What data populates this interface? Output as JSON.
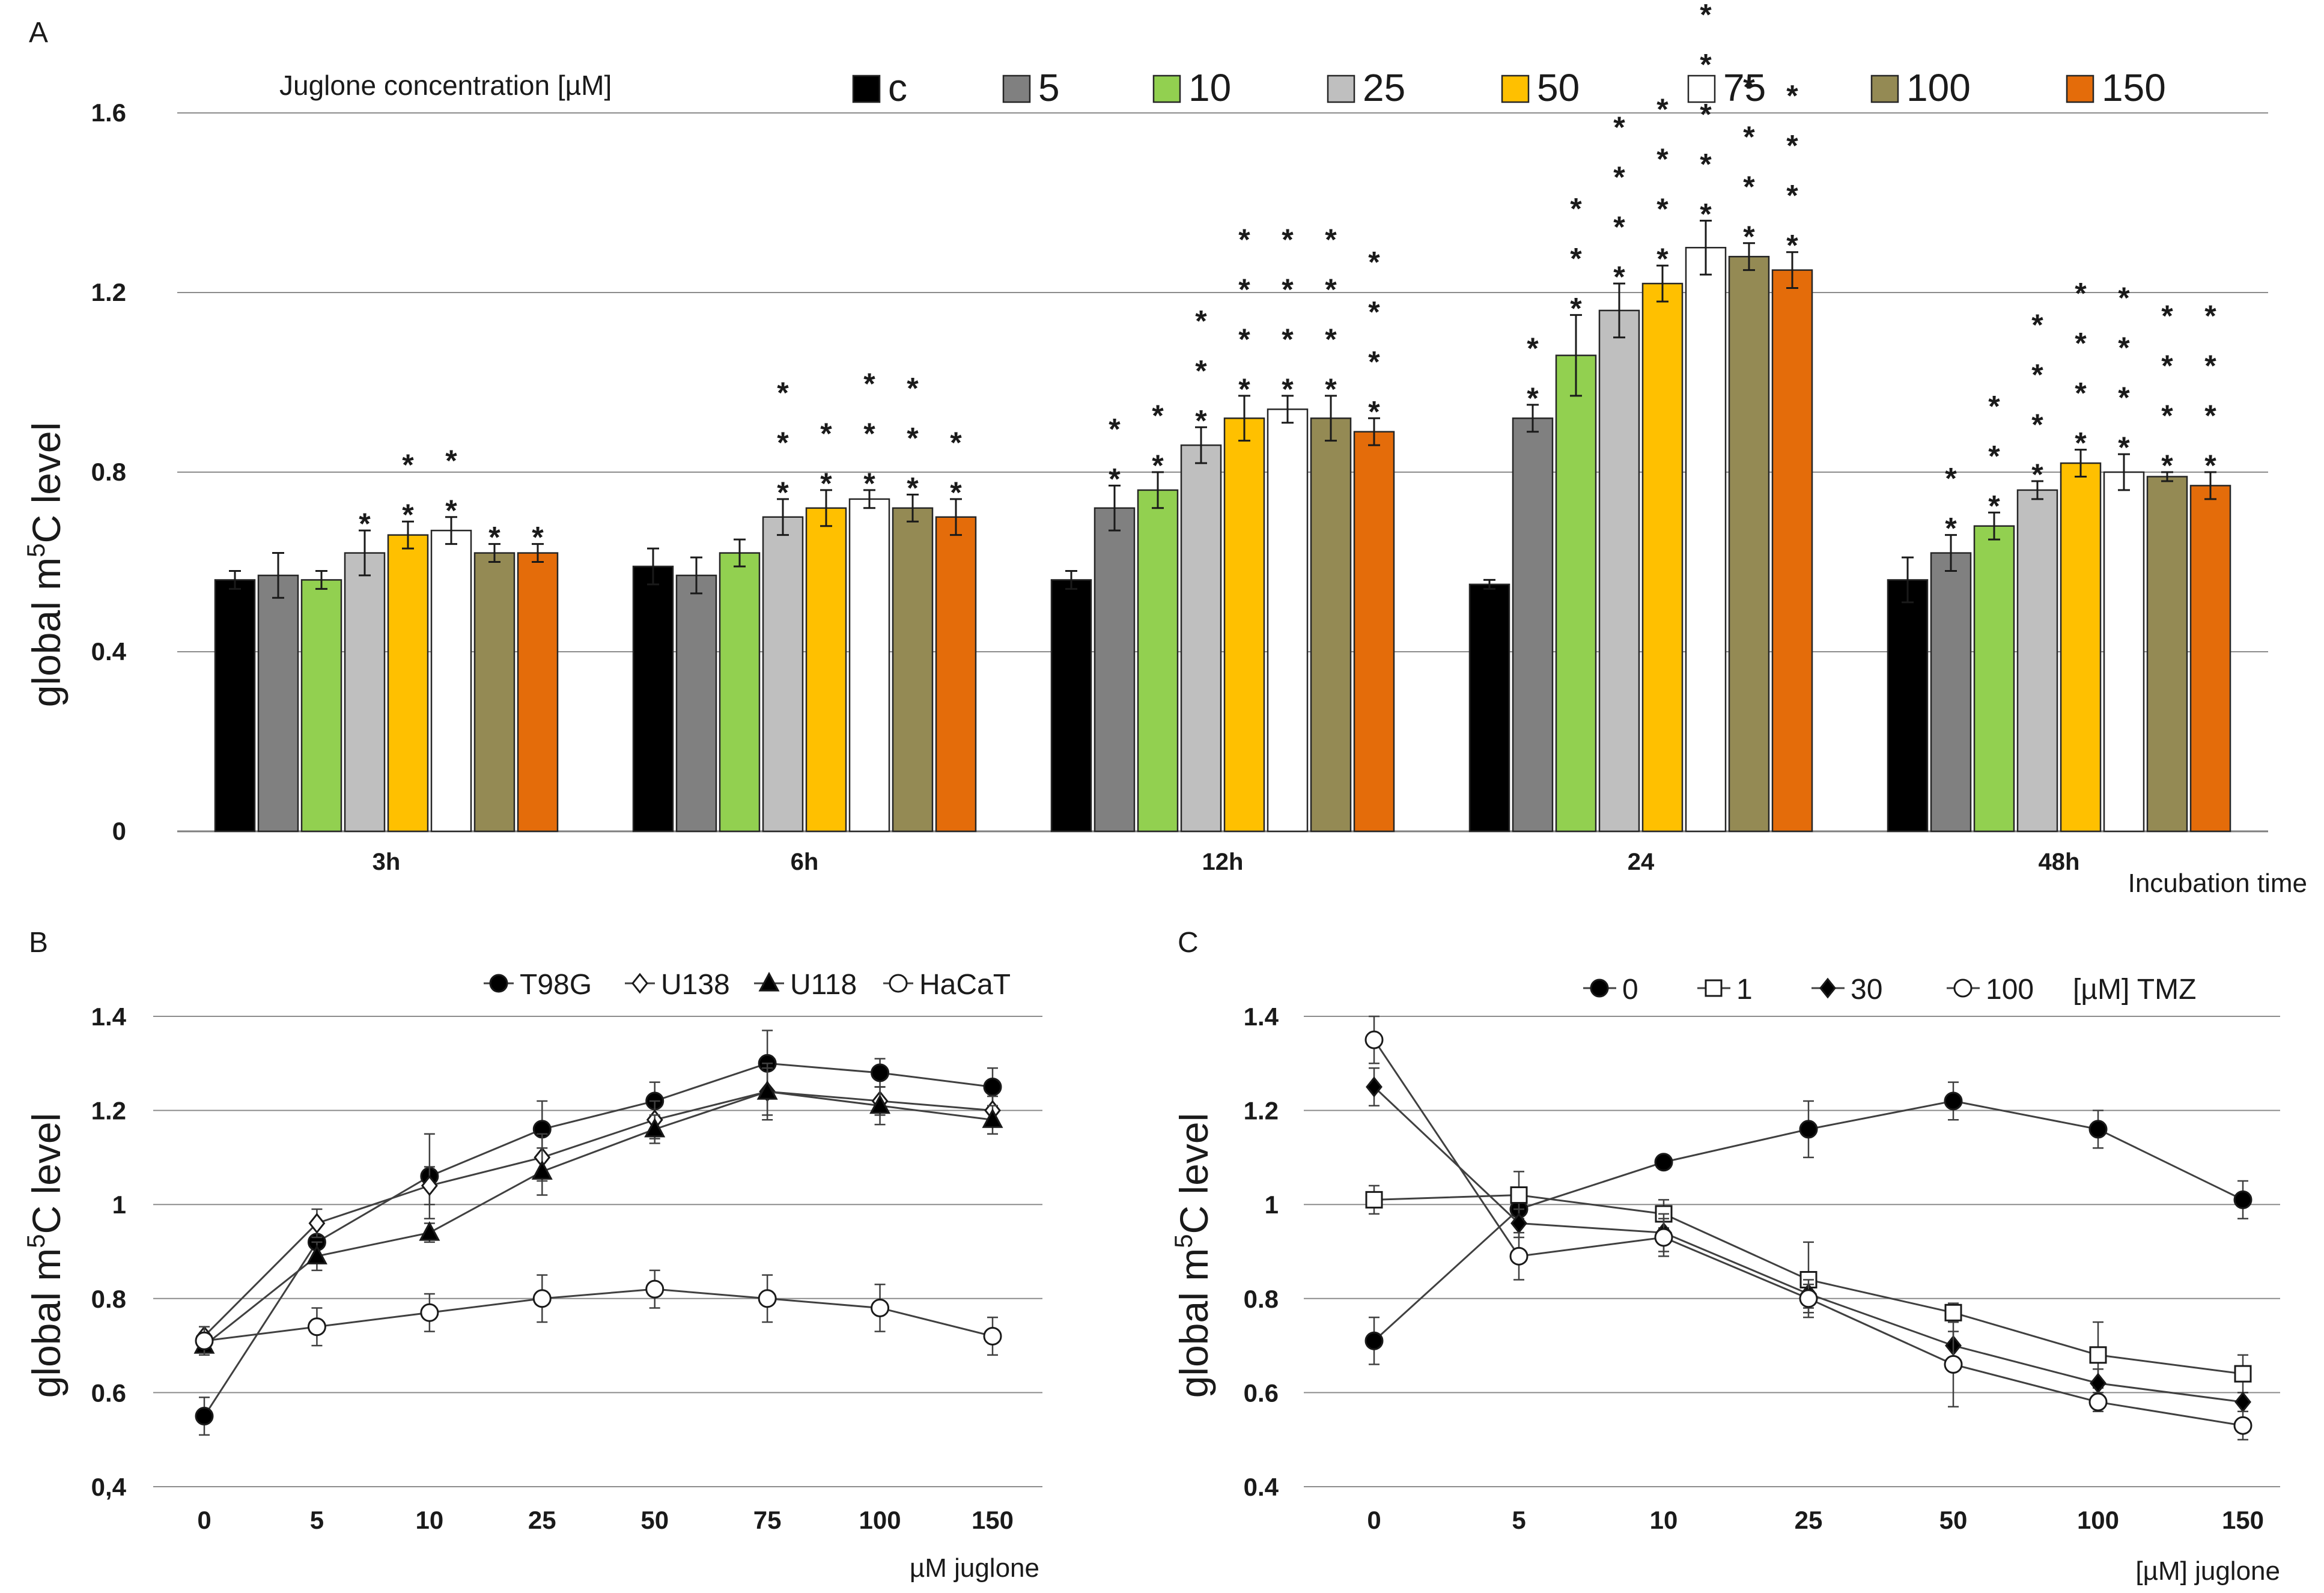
{
  "chart_data": [
    {
      "panel": "A",
      "type": "bar",
      "title": "",
      "legend_title": "Juglone concentration [µM]",
      "ylabel": "global m5C level",
      "ylabel_main": "global m",
      "ylabel_sup": "5",
      "ylabel_rest": "C level",
      "xlabel": "Incubation time",
      "ylim": [
        0,
        1.6
      ],
      "yticks": [
        "0",
        "0.4",
        "0.8",
        "1.2",
        "1.6"
      ],
      "ytick_values": [
        0,
        0.4,
        0.8,
        1.2,
        1.6
      ],
      "categories": [
        "3h",
        "6h",
        "12h",
        "24",
        "48h"
      ],
      "series": [
        {
          "name": "c",
          "color": "#000000",
          "values": [
            0.56,
            0.59,
            0.56,
            0.55,
            0.56
          ],
          "errors": [
            0.02,
            0.04,
            0.02,
            0.01,
            0.05
          ],
          "stars": [
            0,
            0,
            0,
            0,
            0
          ]
        },
        {
          "name": "5",
          "color": "#808080",
          "values": [
            0.57,
            0.57,
            0.72,
            0.92,
            0.62
          ],
          "errors": [
            0.05,
            0.04,
            0.05,
            0.03,
            0.04
          ],
          "stars": [
            0,
            0,
            2,
            2,
            2
          ]
        },
        {
          "name": "10",
          "color": "#92d050",
          "values": [
            0.56,
            0.62,
            0.76,
            1.06,
            0.68
          ],
          "errors": [
            0.02,
            0.03,
            0.04,
            0.09,
            0.03
          ],
          "stars": [
            0,
            0,
            2,
            3,
            3
          ]
        },
        {
          "name": "25",
          "color": "#bfbfbf",
          "values": [
            0.62,
            0.7,
            0.86,
            1.16,
            0.76
          ],
          "errors": [
            0.05,
            0.04,
            0.04,
            0.06,
            0.02
          ],
          "stars": [
            1,
            3,
            3,
            4,
            4
          ]
        },
        {
          "name": "50",
          "color": "#ffc000",
          "values": [
            0.66,
            0.72,
            0.92,
            1.22,
            0.82
          ],
          "errors": [
            0.03,
            0.04,
            0.05,
            0.04,
            0.03
          ],
          "stars": [
            2,
            2,
            4,
            4,
            4
          ]
        },
        {
          "name": "75",
          "color": "#ffffff",
          "values": [
            0.67,
            0.74,
            0.94,
            1.3,
            0.8
          ],
          "errors": [
            0.03,
            0.02,
            0.03,
            0.06,
            0.04
          ],
          "stars": [
            2,
            3,
            4,
            5,
            4
          ]
        },
        {
          "name": "100",
          "color": "#948a54",
          "values": [
            0.62,
            0.72,
            0.92,
            1.28,
            0.79
          ],
          "errors": [
            0.02,
            0.03,
            0.05,
            0.03,
            0.01
          ],
          "stars": [
            1,
            3,
            4,
            4,
            4
          ]
        },
        {
          "name": "150",
          "color": "#e46c0a",
          "values": [
            0.62,
            0.7,
            0.89,
            1.25,
            0.77
          ],
          "errors": [
            0.02,
            0.04,
            0.03,
            0.04,
            0.03
          ],
          "stars": [
            1,
            2,
            4,
            4,
            4
          ]
        }
      ]
    },
    {
      "panel": "B",
      "type": "line",
      "title": "",
      "ylabel": "global m5C level",
      "ylabel_main": "global m",
      "ylabel_sup": "5",
      "ylabel_rest": "C level",
      "xlabel": "µM juglone",
      "ylim": [
        0.4,
        1.4
      ],
      "yticks": [
        "0,4",
        "0.6",
        "0.8",
        "1",
        "1.2",
        "1.4"
      ],
      "ytick_values": [
        0.4,
        0.6,
        0.8,
        1.0,
        1.2,
        1.4
      ],
      "categories": [
        "0",
        "5",
        "10",
        "25",
        "50",
        "75",
        "100",
        "150"
      ],
      "series": [
        {
          "name": "T98G",
          "marker": "circle-filled",
          "values": [
            0.55,
            0.92,
            1.06,
            1.16,
            1.22,
            1.3,
            1.28,
            1.25
          ],
          "errors": [
            0.04,
            0.04,
            0.09,
            0.06,
            0.04,
            0.07,
            0.03,
            0.04
          ]
        },
        {
          "name": "U138",
          "marker": "diamond-open",
          "values": [
            0.72,
            0.96,
            1.04,
            1.1,
            1.18,
            1.24,
            1.22,
            1.2
          ],
          "errors": [
            0.02,
            0.03,
            0.04,
            0.05,
            0.04,
            0.05,
            0.03,
            0.03
          ]
        },
        {
          "name": "U118",
          "marker": "triangle-filled",
          "values": [
            0.7,
            0.89,
            0.94,
            1.07,
            1.16,
            1.24,
            1.21,
            1.18
          ],
          "errors": [
            0.02,
            0.03,
            0.02,
            0.05,
            0.03,
            0.06,
            0.04,
            0.03
          ]
        },
        {
          "name": "HaCaT",
          "marker": "circle-open",
          "values": [
            0.71,
            0.74,
            0.77,
            0.8,
            0.82,
            0.8,
            0.78,
            0.72
          ],
          "errors": [
            0.03,
            0.04,
            0.04,
            0.05,
            0.04,
            0.05,
            0.05,
            0.04
          ]
        }
      ]
    },
    {
      "panel": "C",
      "type": "line",
      "title": "",
      "legend_suffix": "[µM] TMZ",
      "ylabel": "global m5C level",
      "ylabel_main": "global m",
      "ylabel_sup": "5",
      "ylabel_rest": "C level",
      "xlabel": "[µM] juglone",
      "ylim": [
        0.4,
        1.4
      ],
      "yticks": [
        "0.4",
        "0.6",
        "0.8",
        "1",
        "1.2",
        "1.4"
      ],
      "ytick_values": [
        0.4,
        0.6,
        0.8,
        1.0,
        1.2,
        1.4
      ],
      "categories": [
        "0",
        "5",
        "10",
        "25",
        "50",
        "100",
        "150"
      ],
      "series": [
        {
          "name": "0",
          "marker": "circle-filled",
          "values": [
            0.71,
            0.99,
            1.09,
            1.16,
            1.22,
            1.16,
            1.01
          ],
          "errors": [
            0.05,
            0.02,
            0.01,
            0.06,
            0.04,
            0.04,
            0.04
          ]
        },
        {
          "name": "1",
          "marker": "square-open",
          "values": [
            1.01,
            1.02,
            0.98,
            0.84,
            0.77,
            0.68,
            0.64
          ],
          "errors": [
            0.03,
            0.05,
            0.03,
            0.08,
            0.02,
            0.07,
            0.04
          ]
        },
        {
          "name": "30",
          "marker": "diamond-filled",
          "values": [
            1.25,
            0.96,
            0.94,
            0.81,
            0.7,
            0.62,
            0.58
          ],
          "errors": [
            0.04,
            0.03,
            0.04,
            0.03,
            0.03,
            0.03,
            0.02
          ]
        },
        {
          "name": "100",
          "marker": "circle-open",
          "values": [
            1.35,
            0.89,
            0.93,
            0.8,
            0.66,
            0.58,
            0.53
          ],
          "errors": [
            0.05,
            0.05,
            0.04,
            0.03,
            0.09,
            0.02,
            0.03
          ]
        }
      ]
    }
  ],
  "panel_labels": {
    "a": "A",
    "b": "B",
    "c": "C"
  },
  "star_char": "*"
}
